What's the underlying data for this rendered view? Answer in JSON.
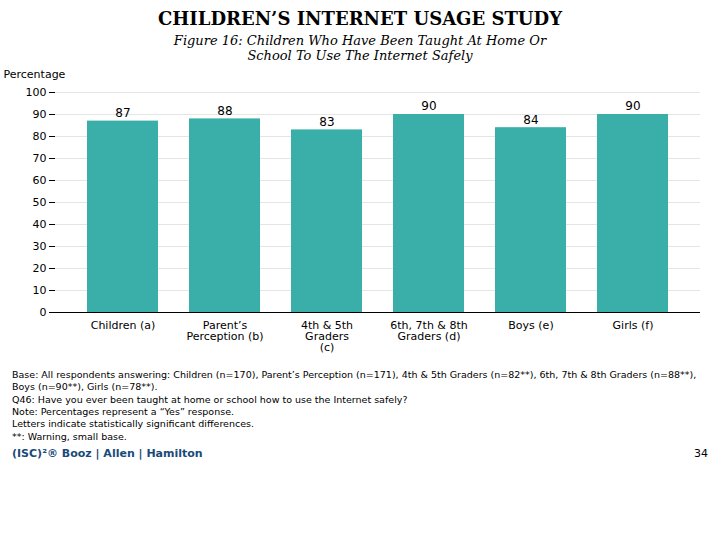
{
  "chart_data": {
    "type": "bar",
    "title": "CHILDREN’S INTERNET USAGE STUDY",
    "subtitle": "Figure 16: Children Who Have Been Taught At Home Or\nSchool To Use The Internet Safely",
    "categories": [
      "Children (a)",
      "Parent’s\nPerception (b)",
      "4th & 5th\nGraders\n(c)",
      "6th, 7th & 8th\nGraders (d)",
      "Boys (e)",
      "Girls (f)"
    ],
    "values": [
      87,
      88,
      83,
      90,
      84,
      90
    ],
    "color": "#3aafa9",
    "ylabel": "Percentage",
    "ylim": [
      0,
      100
    ],
    "yticks": [
      0,
      10,
      20,
      30,
      40,
      50,
      60,
      70,
      80,
      90,
      100
    ],
    "grid": true,
    "data_labels": true,
    "annotations": [
      "Base: All respondents answering: Children (n=170), Parent’s Perception (n=171), 4th & 5th Graders (n=82**), 6th, 7th & 8th Graders (n=88**), Boys (n=90**), Girls (n=78**).",
      "Q46: Have you ever been taught at home or school how to use the Internet safely?",
      "Note: Percentages represent a “Yes” response.",
      "Letters indicate statistically significant differences.",
      "**: Warning, small base.",
      "(ISC)²®  Booz  |  Allen  |  Hamilton",
      "34"
    ]
  }
}
